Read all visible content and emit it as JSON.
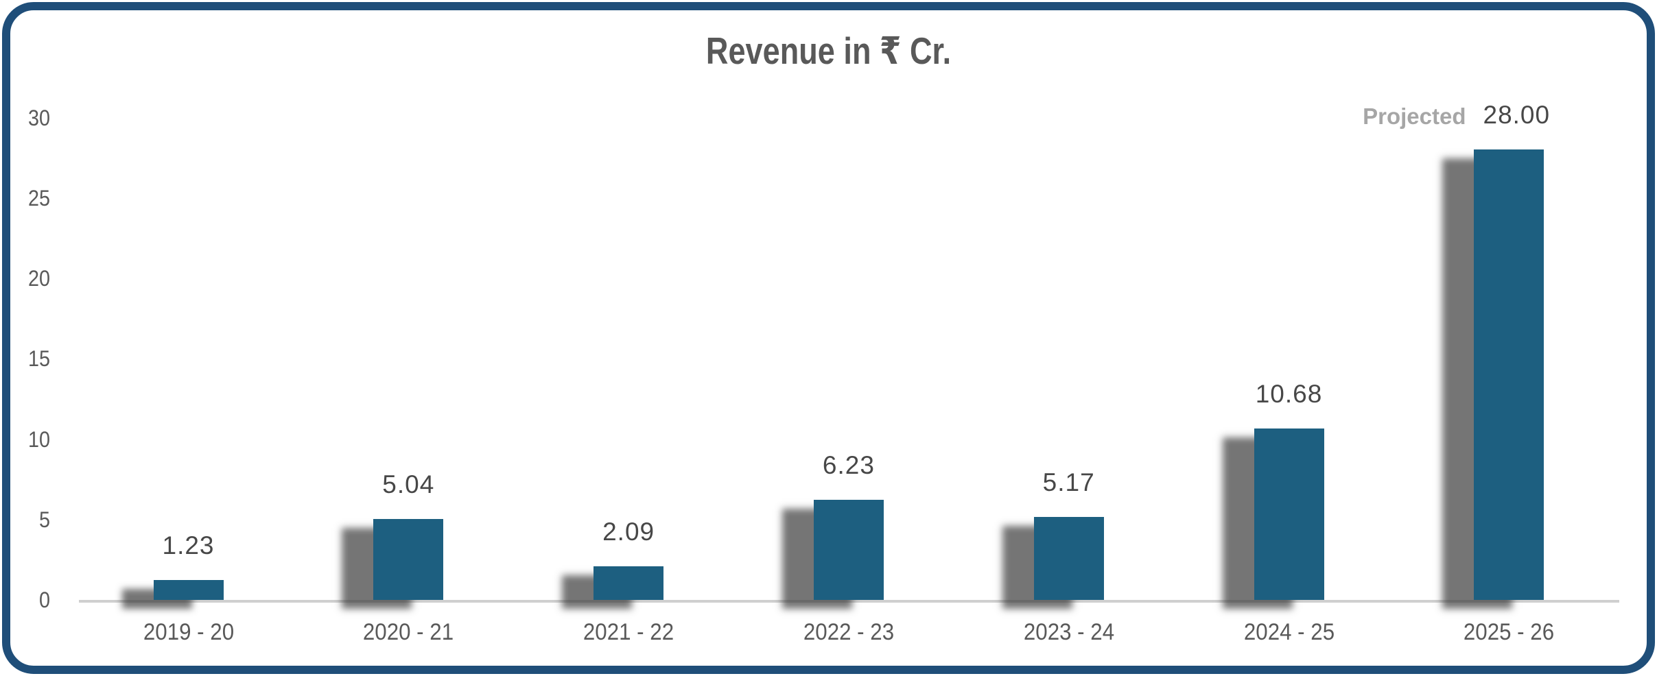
{
  "chart_data": {
    "type": "bar",
    "title": "Revenue in ₹ Cr.",
    "categories": [
      "2019 - 20",
      "2020 - 21",
      "2021 - 22",
      "2022 - 23",
      "2023 - 24",
      "2024 - 25",
      "2025 - 26"
    ],
    "values": [
      1.23,
      5.04,
      2.09,
      6.23,
      5.17,
      10.68,
      28.0
    ],
    "value_labels": [
      "1.23",
      "5.04",
      "2.09",
      "6.23",
      "5.17",
      "10.68",
      "28.00"
    ],
    "annotations": [
      {
        "text": "Projected",
        "category": "2025 - 26",
        "category_index": 6,
        "position": "left-of-value-label"
      }
    ],
    "xlabel": "",
    "ylabel": "",
    "ylim": [
      0,
      30
    ],
    "yticks": [
      "0",
      "5",
      "10",
      "15",
      "20",
      "25",
      "30"
    ],
    "grid": false,
    "legend": false,
    "colors": {
      "bar": "#1D5F80",
      "bar_shadow": "#6E6E6E",
      "frame_border": "#1F4E79",
      "axis_line": "#CFCFCF",
      "axis_tick_label": "#595959",
      "category_label": "#595959",
      "data_label": "#474747",
      "annotation_label": "#A6A6A6",
      "title": "#595959",
      "background": "#FFFFFF"
    }
  }
}
